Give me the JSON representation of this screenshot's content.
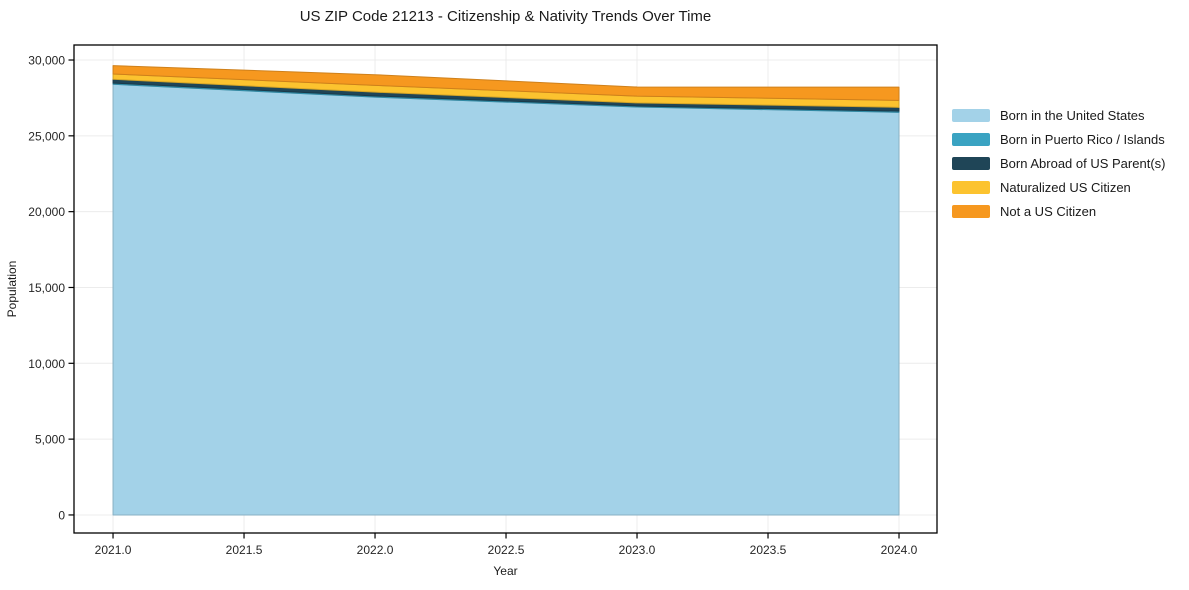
{
  "figure": {
    "title": "US ZIP Code 21213 - Citizenship & Nativity Trends Over Time",
    "xlabel": "Year",
    "ylabel": "Population"
  },
  "chart_data": {
    "type": "area",
    "stacked": true,
    "title": "US ZIP Code 21213 - Citizenship & Nativity Trends Over Time",
    "xlabel": "Year",
    "ylabel": "Population",
    "x": [
      2021,
      2022,
      2023,
      2024
    ],
    "series": [
      {
        "name": "Born in the United States",
        "color": "#a3d2e8",
        "values": [
          28400,
          27550,
          26900,
          26550
        ]
      },
      {
        "name": "Born in Puerto Rico / Islands",
        "color": "#3aa3c2",
        "values": [
          80,
          80,
          70,
          80
        ]
      },
      {
        "name": "Born Abroad of US Parent(s)",
        "color": "#1f4557",
        "values": [
          250,
          250,
          200,
          250
        ]
      },
      {
        "name": "Naturalized US Citizen",
        "color": "#fcc32f",
        "values": [
          350,
          450,
          450,
          460
        ]
      },
      {
        "name": "Not a US Citizen",
        "color": "#f6981f",
        "values": [
          550,
          700,
          600,
          870
        ]
      }
    ],
    "stack_totals": [
      29630,
      29030,
      28220,
      28210
    ],
    "xlim": [
      2020.851,
      2024.145
    ],
    "ylim": [
      -1190,
      30990
    ],
    "xticks": {
      "values": [
        2021.0,
        2021.5,
        2022.0,
        2022.5,
        2023.0,
        2023.5,
        2024.0
      ],
      "labels": [
        "2021.0",
        "2021.5",
        "2022.0",
        "2022.5",
        "2023.0",
        "2023.5",
        "2024.0"
      ]
    },
    "yticks": {
      "values": [
        0,
        5000,
        10000,
        15000,
        20000,
        25000,
        30000
      ],
      "labels": [
        "0",
        "5,000",
        "10,000",
        "15,000",
        "20,000",
        "25,000",
        "30,000"
      ]
    },
    "grid": true,
    "legend_position": "outside-right"
  },
  "colors": {
    "background": "#ffffff",
    "grid": "#ececec",
    "spine": "#000000",
    "tick_label": "#262626"
  }
}
